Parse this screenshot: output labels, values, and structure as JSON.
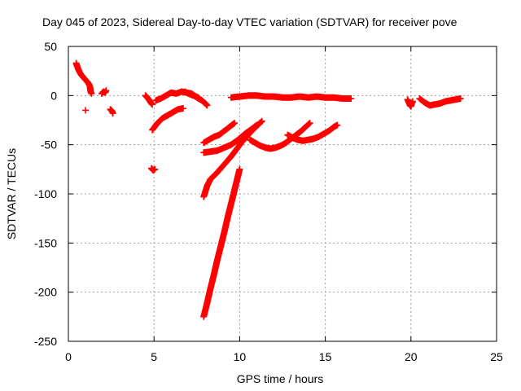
{
  "chart_data": {
    "type": "scatter",
    "title": "Day 045 of 2023, Sidereal Day-to-day VTEC variation (SDTVAR) for receiver pove",
    "xlabel": "GPS time / hours",
    "ylabel": "SDTVAR / TECUs",
    "xlim": [
      0,
      25
    ],
    "ylim": [
      -250,
      50
    ],
    "x_ticks": [
      0,
      5,
      10,
      15,
      20,
      25
    ],
    "y_ticks": [
      50,
      0,
      -50,
      -100,
      -150,
      -200,
      -250
    ],
    "grid": true,
    "marker": "+",
    "color": "#ff0000",
    "series": [
      {
        "segments": [
          [
            [
              0.45,
              33
            ],
            [
              0.55,
              28
            ],
            [
              0.65,
              24
            ],
            [
              0.75,
              21
            ],
            [
              0.85,
              19
            ],
            [
              0.95,
              17
            ],
            [
              1.05,
              15
            ],
            [
              1.15,
              13
            ],
            [
              1.25,
              10
            ],
            [
              1.3,
              4
            ],
            [
              1.35,
              2
            ]
          ],
          [
            [
              1.0,
              -15
            ]
          ],
          [
            [
              1.95,
              2
            ],
            [
              2.05,
              4
            ],
            [
              2.15,
              3
            ],
            [
              2.2,
              5
            ]
          ],
          [
            [
              2.45,
              -14
            ],
            [
              2.55,
              -16
            ],
            [
              2.6,
              -18
            ]
          ],
          [
            [
              4.5,
              0
            ],
            [
              4.6,
              -2
            ],
            [
              4.7,
              -4
            ],
            [
              4.8,
              -7
            ],
            [
              4.9,
              -9
            ]
          ],
          [
            [
              4.85,
              -74
            ],
            [
              4.95,
              -76
            ],
            [
              5.05,
              -75
            ]
          ],
          [
            [
              4.9,
              -35
            ],
            [
              5.2,
              -28
            ],
            [
              5.5,
              -23
            ],
            [
              5.8,
              -20
            ],
            [
              6.1,
              -17
            ],
            [
              6.4,
              -14
            ],
            [
              6.7,
              -13
            ]
          ],
          [
            [
              5.1,
              -5
            ],
            [
              5.4,
              -3
            ],
            [
              5.7,
              0
            ],
            [
              6.0,
              3
            ],
            [
              6.3,
              2
            ],
            [
              6.6,
              4
            ],
            [
              6.9,
              3
            ],
            [
              7.2,
              2
            ],
            [
              7.5,
              -2
            ],
            [
              7.8,
              -5
            ],
            [
              8.0,
              -8
            ],
            [
              8.1,
              -10
            ]
          ],
          [
            [
              6.8,
              4
            ],
            [
              7.0,
              2
            ],
            [
              7.3,
              0
            ],
            [
              7.6,
              -2
            ]
          ],
          [
            [
              7.9,
              -225
            ],
            [
              8.1,
              -211
            ],
            [
              8.3,
              -196
            ],
            [
              8.5,
              -182
            ],
            [
              8.7,
              -167
            ],
            [
              8.9,
              -153
            ],
            [
              9.1,
              -139
            ],
            [
              9.3,
              -124
            ],
            [
              9.5,
              -110
            ],
            [
              9.7,
              -96
            ],
            [
              9.9,
              -82
            ],
            [
              10.0,
              -75
            ]
          ],
          [
            [
              7.9,
              -103
            ],
            [
              8.1,
              -92
            ],
            [
              8.3,
              -85
            ],
            [
              8.6,
              -80
            ],
            [
              8.9,
              -74
            ],
            [
              9.2,
              -68
            ],
            [
              9.5,
              -62
            ],
            [
              9.8,
              -55
            ],
            [
              10.1,
              -48
            ],
            [
              10.4,
              -42
            ],
            [
              10.7,
              -36
            ],
            [
              11.0,
              -31
            ],
            [
              11.3,
              -26
            ]
          ],
          [
            [
              7.9,
              -58
            ],
            [
              8.3,
              -57
            ],
            [
              8.7,
              -56
            ],
            [
              9.1,
              -53
            ],
            [
              9.5,
              -50
            ],
            [
              9.9,
              -45
            ],
            [
              10.3,
              -39
            ],
            [
              10.7,
              -34
            ],
            [
              11.0,
              -30
            ]
          ],
          [
            [
              7.9,
              -48
            ],
            [
              8.2,
              -45
            ],
            [
              8.5,
              -42
            ],
            [
              8.8,
              -40
            ],
            [
              9.1,
              -36
            ],
            [
              9.4,
              -32
            ],
            [
              9.7,
              -28
            ]
          ],
          [
            [
              10.6,
              -45
            ],
            [
              10.9,
              -48
            ],
            [
              11.2,
              -51
            ],
            [
              11.5,
              -53
            ],
            [
              11.8,
              -54
            ],
            [
              12.1,
              -53
            ],
            [
              12.4,
              -51
            ],
            [
              12.7,
              -48
            ],
            [
              13.0,
              -44
            ],
            [
              13.3,
              -40
            ],
            [
              13.6,
              -36
            ],
            [
              13.9,
              -31
            ],
            [
              14.1,
              -28
            ]
          ],
          [
            [
              12.8,
              -40
            ],
            [
              13.1,
              -43
            ],
            [
              13.4,
              -45
            ],
            [
              13.7,
              -46
            ],
            [
              14.0,
              -45
            ],
            [
              14.3,
              -44
            ],
            [
              14.6,
              -42
            ],
            [
              14.9,
              -39
            ],
            [
              15.2,
              -36
            ],
            [
              15.5,
              -32
            ],
            [
              15.7,
              -30
            ]
          ],
          [
            [
              9.5,
              -2
            ],
            [
              10.0,
              -1
            ],
            [
              10.5,
              0
            ],
            [
              11.0,
              0
            ],
            [
              11.5,
              -1
            ],
            [
              12.0,
              -1
            ],
            [
              12.5,
              -2
            ],
            [
              13.0,
              -2
            ],
            [
              13.5,
              -1
            ],
            [
              14.0,
              -2
            ],
            [
              14.5,
              -1
            ],
            [
              15.0,
              -2
            ],
            [
              15.5,
              -2
            ],
            [
              16.0,
              -3
            ],
            [
              16.5,
              -3
            ]
          ],
          [
            [
              19.8,
              -4
            ],
            [
              19.85,
              -6
            ],
            [
              19.9,
              -8
            ],
            [
              19.95,
              -10
            ],
            [
              20.0,
              -11
            ],
            [
              20.05,
              -8
            ],
            [
              20.1,
              -6
            ]
          ],
          [
            [
              20.5,
              -3
            ],
            [
              20.8,
              -7
            ],
            [
              21.1,
              -10
            ],
            [
              21.4,
              -9
            ],
            [
              21.7,
              -8
            ],
            [
              22.0,
              -6
            ],
            [
              22.3,
              -5
            ],
            [
              22.6,
              -4
            ],
            [
              22.9,
              -3
            ]
          ]
        ]
      }
    ]
  }
}
